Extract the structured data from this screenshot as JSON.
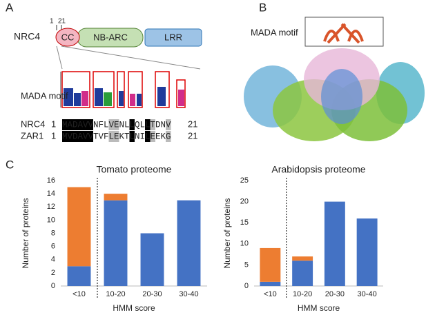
{
  "panel_a": {
    "letter": "A",
    "start": "1",
    "end": "21",
    "protein": "NRC4",
    "domains": [
      "CC",
      "NB-ARC",
      "LRR"
    ],
    "motif_label": "MADA motif",
    "alignment": [
      {
        "name": "NRC4",
        "start": "1",
        "sequence": "MADAVVNFLVENLLQLLTDNV",
        "end": "21"
      },
      {
        "name": "ZAR1",
        "start": "1",
        "sequence": "MVDAVVTVFLEKTLNILEEKG",
        "end": "21"
      }
    ]
  },
  "panel_b": {
    "letter": "B",
    "motif_label": "MADA motif"
  },
  "panel_c": {
    "letter": "C"
  },
  "chart_data": [
    {
      "type": "bar",
      "stacked": true,
      "title": "Tomato proteome",
      "y_label": "Number of proteins",
      "x_label": "HMM score",
      "categories": [
        "<10",
        "10-20",
        "20-30",
        "30-40"
      ],
      "series": [
        {
          "color": "#4472c4",
          "values": [
            3,
            13,
            8,
            13
          ]
        },
        {
          "color": "#ed7d31",
          "values": [
            12,
            1,
            0,
            0
          ]
        }
      ],
      "ylim": [
        0,
        16
      ],
      "yticks": [
        0,
        2,
        4,
        6,
        8,
        10,
        12,
        14,
        16
      ],
      "grid": false
    },
    {
      "type": "bar",
      "stacked": true,
      "title": "Arabidopsis proteome",
      "y_label": "Number of proteins",
      "x_label": "HMM score",
      "categories": [
        "<10",
        "10-20",
        "20-30",
        "30-40"
      ],
      "series": [
        {
          "color": "#4472c4",
          "values": [
            1,
            6,
            20,
            16
          ]
        },
        {
          "color": "#ed7d31",
          "values": [
            8,
            1,
            0,
            0
          ]
        }
      ],
      "ylim": [
        0,
        25
      ],
      "yticks": [
        0,
        5,
        10,
        15,
        20,
        25
      ],
      "grid": false
    }
  ]
}
